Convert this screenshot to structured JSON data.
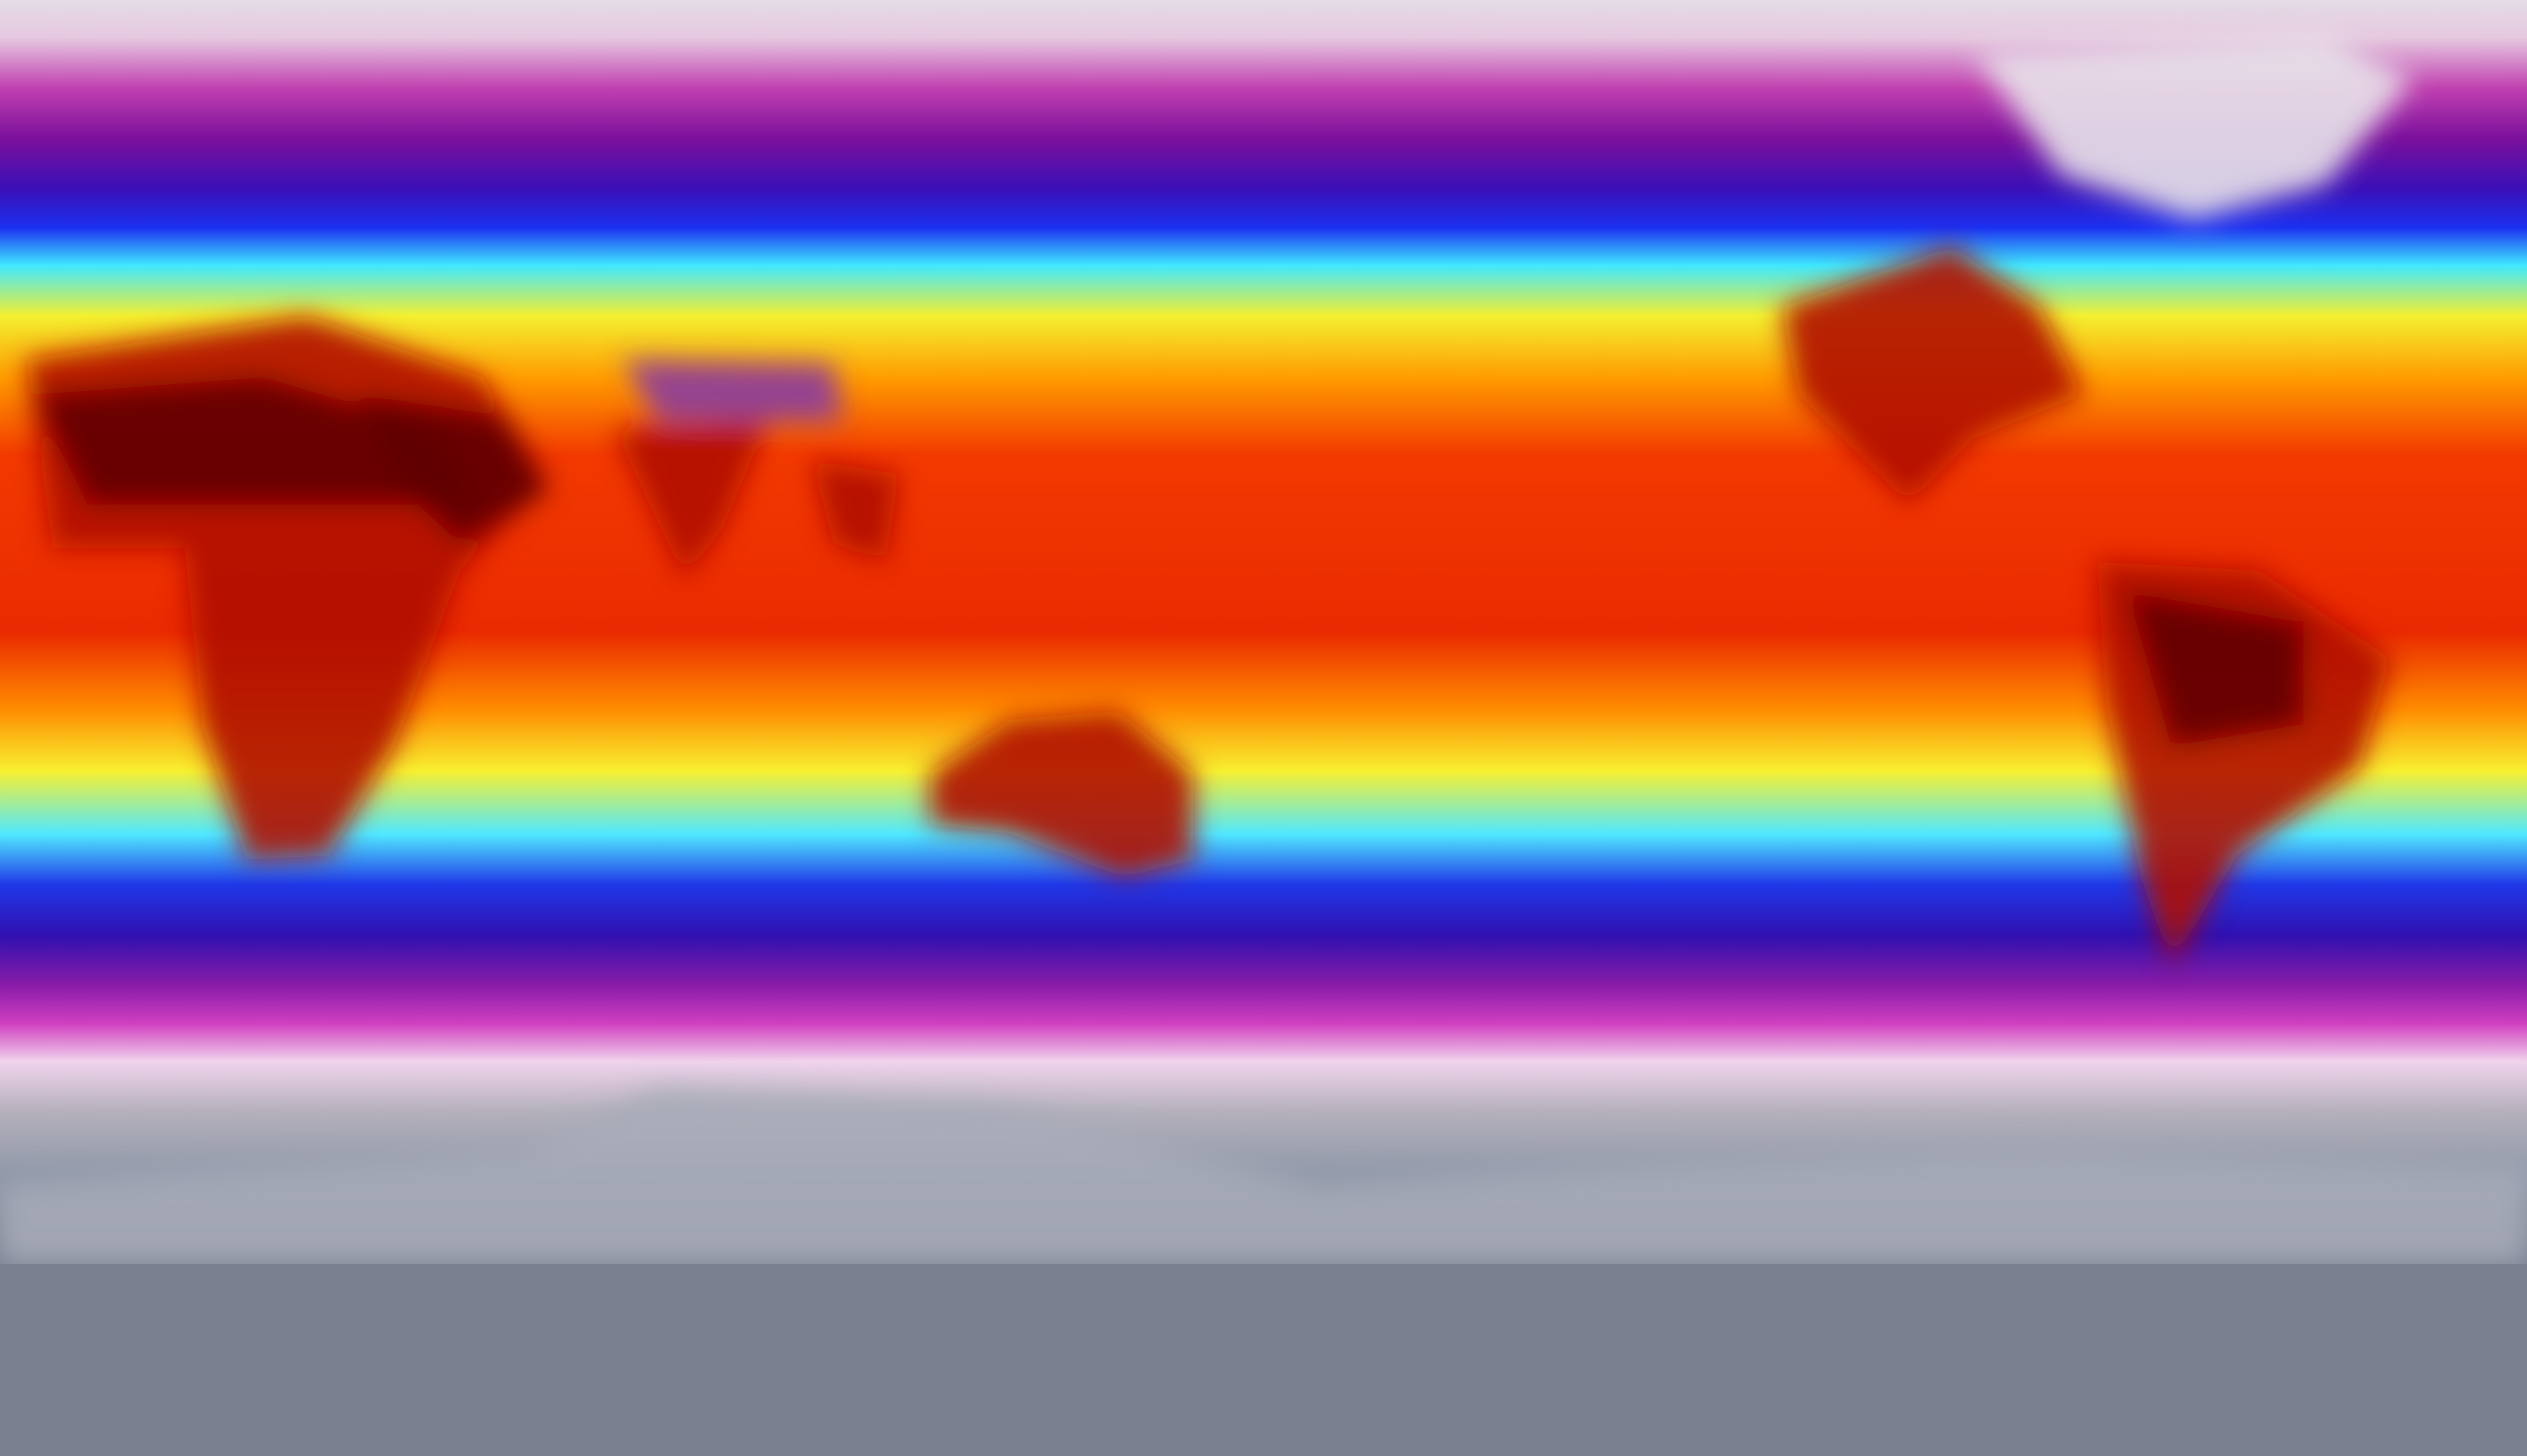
{
  "map": {
    "projection": "equirectangular",
    "colormap_bands": [
      {
        "stop": 0.0,
        "color": "#e4dce6"
      },
      {
        "stop": 0.03,
        "color": "#e6c8e0"
      },
      {
        "stop": 0.07,
        "color": "#c040b0"
      },
      {
        "stop": 0.11,
        "color": "#7a109c"
      },
      {
        "stop": 0.15,
        "color": "#3a10b8"
      },
      {
        "stop": 0.18,
        "color": "#1c30f0"
      },
      {
        "stop": 0.21,
        "color": "#40e8ff"
      },
      {
        "stop": 0.25,
        "color": "#f4f030"
      },
      {
        "stop": 0.3,
        "color": "#ff9a00"
      },
      {
        "stop": 0.36,
        "color": "#f23a00"
      },
      {
        "stop": 0.5,
        "color": "#ea2a00"
      },
      {
        "stop": 0.56,
        "color": "#ff8a00"
      },
      {
        "stop": 0.61,
        "color": "#f8f030"
      },
      {
        "stop": 0.66,
        "color": "#50e8ff"
      },
      {
        "stop": 0.7,
        "color": "#2038e8"
      },
      {
        "stop": 0.74,
        "color": "#3010b0"
      },
      {
        "stop": 0.78,
        "color": "#8a1ca8"
      },
      {
        "stop": 0.81,
        "color": "#d040c0"
      },
      {
        "stop": 0.84,
        "color": "#f0d4ec"
      },
      {
        "stop": 0.88,
        "color": "#b4b0bc"
      },
      {
        "stop": 0.93,
        "color": "#9098a8"
      },
      {
        "stop": 1.0,
        "color": "#7a8090"
      }
    ],
    "land_colors": {
      "hot_desert": "#600000",
      "hot_land": "#b00800",
      "plateau": "#8a3aa0",
      "ice": "#e8e4ea",
      "antarctica": "#a8acb8"
    }
  }
}
